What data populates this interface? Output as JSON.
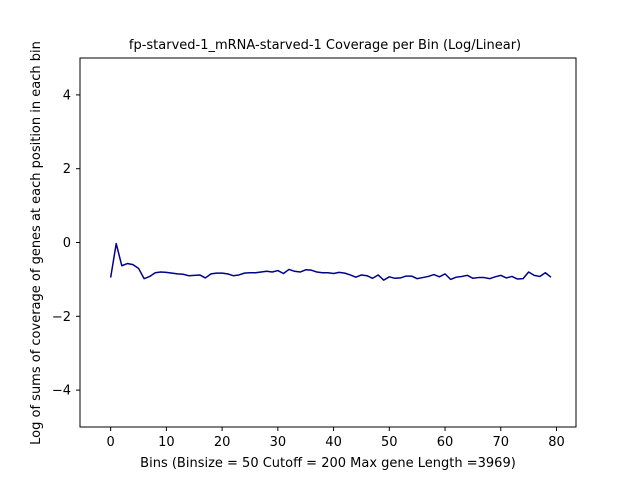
{
  "chart_data": {
    "type": "line",
    "title": "fp-starved-1_mRNA-starved-1 Coverage per Bin (Log/Linear)",
    "xlabel": "Bins  (Binsize = 50 Cutoff = 200 Max gene Length =3969)",
    "ylabel": "Log of sums of coverage of genes at each position in each bin",
    "xlim": [
      -5.5,
      83.5
    ],
    "ylim": [
      -5,
      5
    ],
    "xticks": [
      0,
      10,
      20,
      30,
      40,
      50,
      60,
      70,
      80
    ],
    "yticks": [
      -4,
      -2,
      0,
      2,
      4
    ],
    "grid": false,
    "series": [
      {
        "color": "#00008b",
        "x": [
          0,
          1,
          2,
          3,
          4,
          5,
          6,
          7,
          8,
          9,
          10,
          11,
          12,
          13,
          14,
          15,
          16,
          17,
          18,
          19,
          20,
          21,
          22,
          23,
          24,
          25,
          26,
          27,
          28,
          29,
          30,
          31,
          32,
          33,
          34,
          35,
          36,
          37,
          38,
          39,
          40,
          41,
          42,
          43,
          44,
          45,
          46,
          47,
          48,
          49,
          50,
          51,
          52,
          53,
          54,
          55,
          56,
          57,
          58,
          59,
          60,
          61,
          62,
          63,
          64,
          65,
          66,
          67,
          68,
          69,
          70,
          71,
          72,
          73,
          74,
          75,
          76,
          77,
          78,
          79
        ],
        "y": [
          -0.95,
          -0.03,
          -0.63,
          -0.57,
          -0.6,
          -0.7,
          -0.98,
          -0.92,
          -0.82,
          -0.8,
          -0.81,
          -0.83,
          -0.85,
          -0.86,
          -0.9,
          -0.89,
          -0.88,
          -0.96,
          -0.85,
          -0.83,
          -0.83,
          -0.85,
          -0.9,
          -0.88,
          -0.83,
          -0.82,
          -0.82,
          -0.8,
          -0.78,
          -0.8,
          -0.76,
          -0.84,
          -0.73,
          -0.78,
          -0.8,
          -0.74,
          -0.75,
          -0.8,
          -0.82,
          -0.82,
          -0.84,
          -0.81,
          -0.83,
          -0.88,
          -0.94,
          -0.88,
          -0.9,
          -0.97,
          -0.88,
          -1.02,
          -0.93,
          -0.97,
          -0.96,
          -0.91,
          -0.91,
          -0.98,
          -0.95,
          -0.92,
          -0.87,
          -0.93,
          -0.85,
          -1.0,
          -0.94,
          -0.92,
          -0.89,
          -0.97,
          -0.95,
          -0.95,
          -0.98,
          -0.93,
          -0.89,
          -0.96,
          -0.92,
          -0.99,
          -0.98,
          -0.8,
          -0.89,
          -0.92,
          -0.82,
          -0.94
        ]
      }
    ]
  }
}
